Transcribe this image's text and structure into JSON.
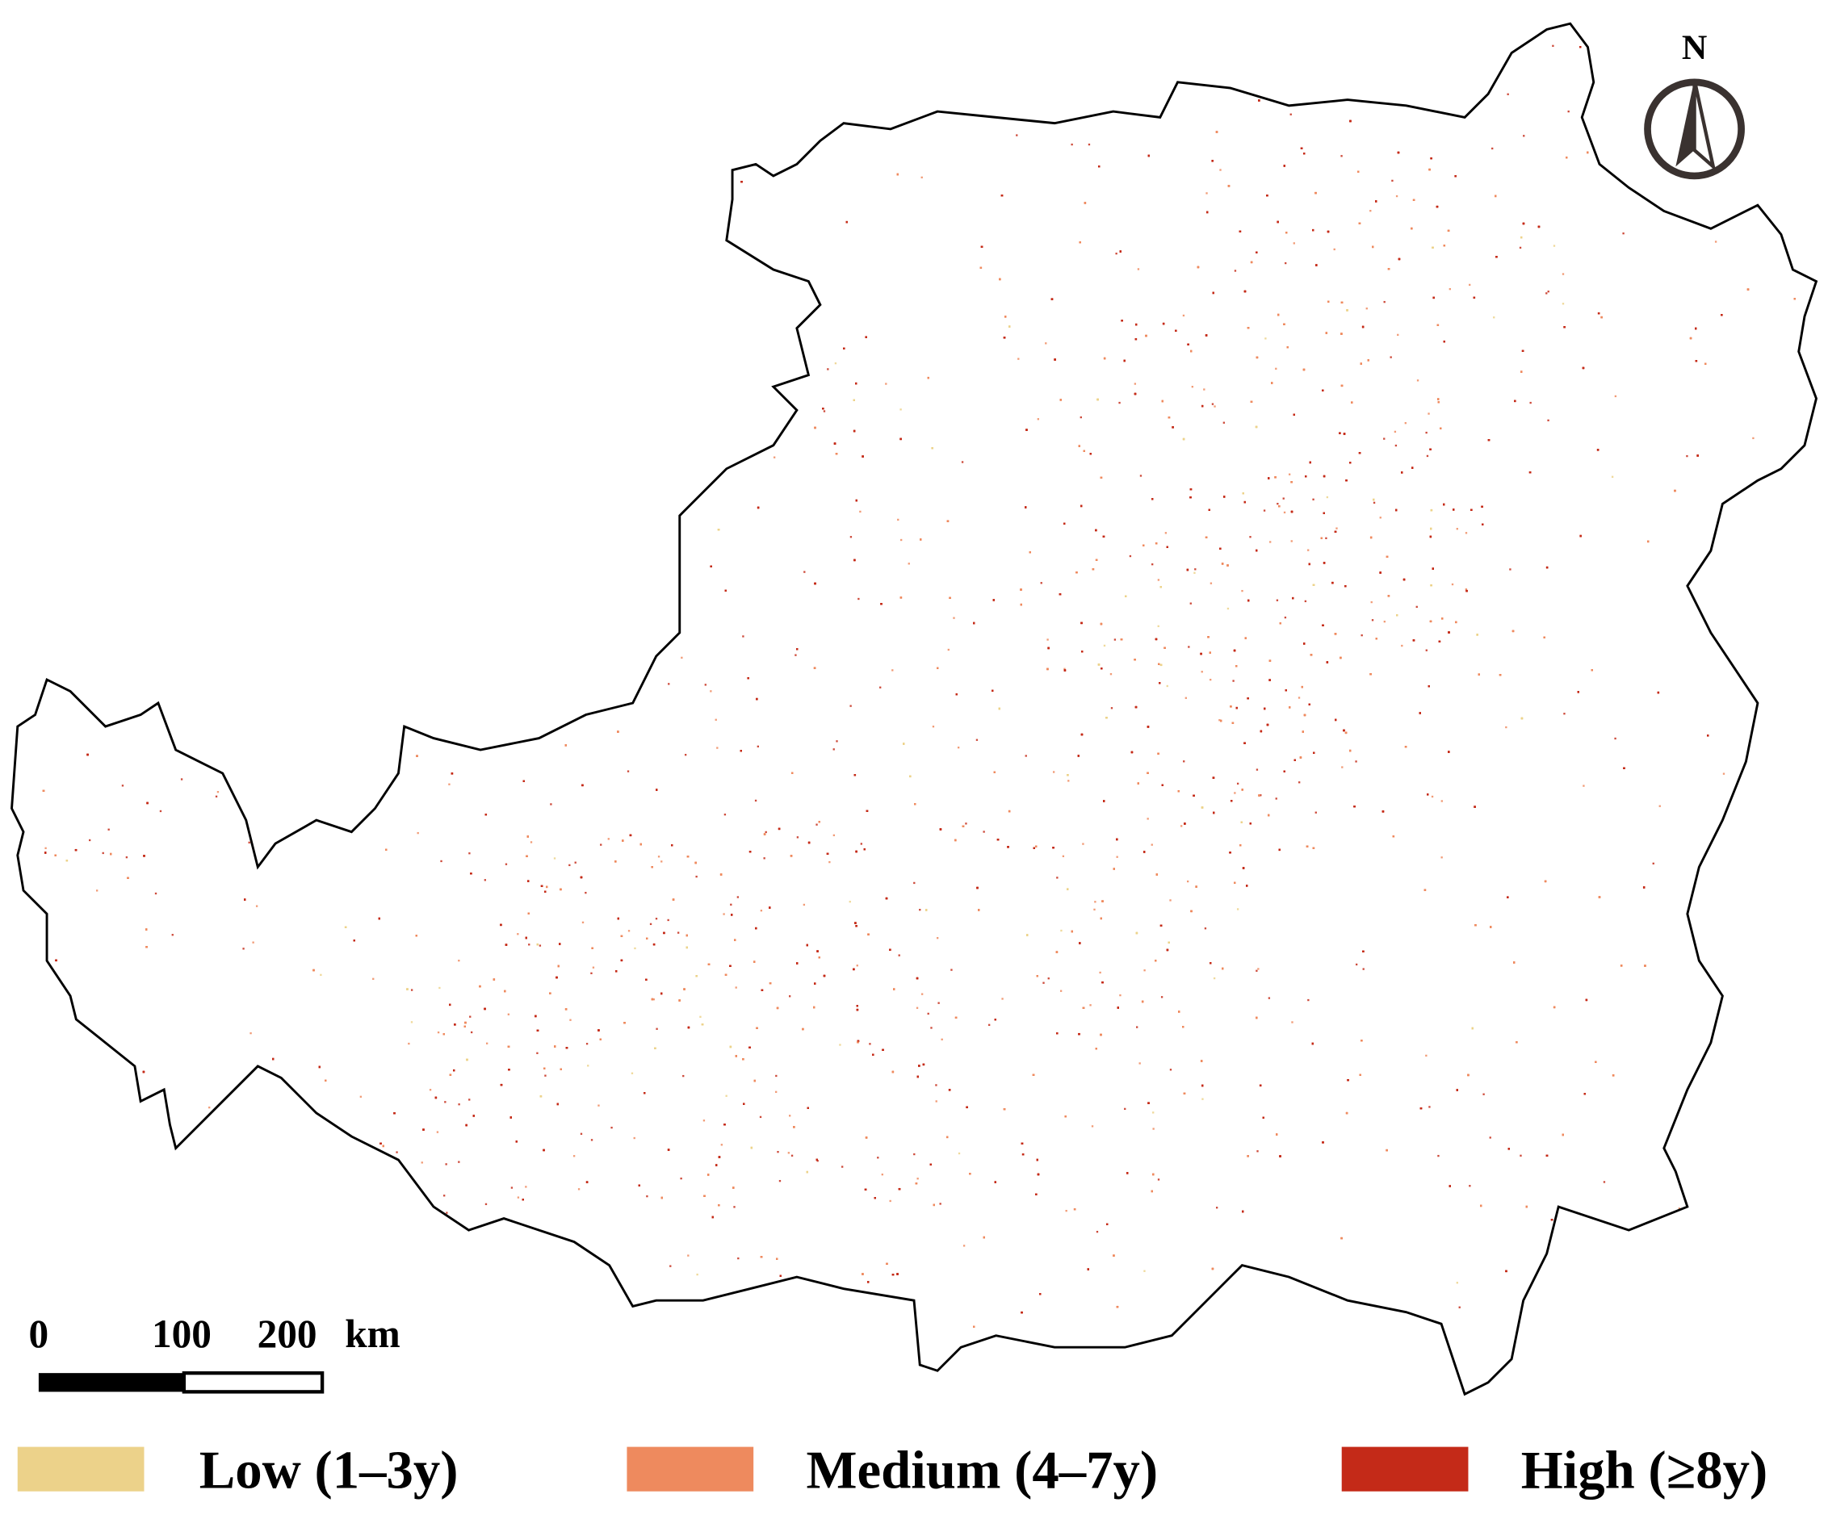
{
  "north_label": "N",
  "scale_bar": {
    "labels": [
      "0",
      "100",
      "200"
    ],
    "unit": "km"
  },
  "legend": [
    {
      "label": "Low (1–3y)",
      "color": "#ecd28a"
    },
    {
      "label": "Medium (4–7y)",
      "color": "#ee8a5e"
    },
    {
      "label": "High (≥8y)",
      "color": "#c42a18"
    }
  ]
}
